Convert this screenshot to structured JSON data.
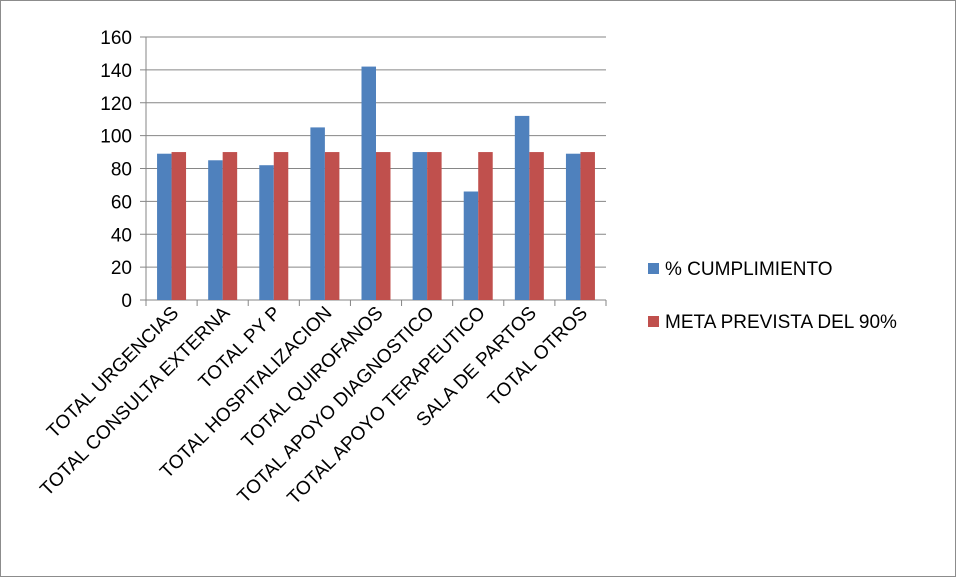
{
  "chart_data": {
    "type": "bar",
    "title": "",
    "xlabel": "",
    "ylabel": "",
    "ylim": [
      0,
      160
    ],
    "yticks": [
      0,
      20,
      40,
      60,
      80,
      100,
      120,
      140,
      160
    ],
    "grid": true,
    "legend_position": "right",
    "categories": [
      "TOTAL URGENCIAS",
      "TOTAL CONSULTA EXTERNA",
      "TOTAL PY P",
      "TOTAL HOSPITALIZACION",
      "TOTAL QUIROFANOS",
      "TOTAL APOYO DIAGNOSTICO",
      "TOTAL APOYO TERAPEUTICO",
      "SALA DE PARTOS",
      "TOTAL OTROS"
    ],
    "series": [
      {
        "name": "% CUMPLIMIENTO",
        "color": "#4f81bd",
        "values": [
          89,
          85,
          82,
          105,
          142,
          90,
          66,
          112,
          89
        ]
      },
      {
        "name": "META PREVISTA DEL 90%",
        "color": "#c0504d",
        "values": [
          90,
          90,
          90,
          90,
          90,
          90,
          90,
          90,
          90
        ]
      }
    ]
  }
}
